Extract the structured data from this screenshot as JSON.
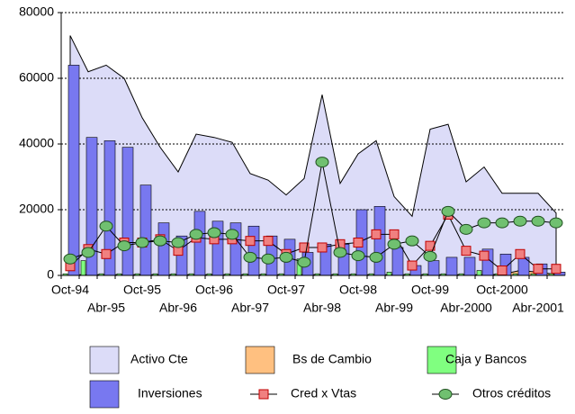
{
  "chart_data": {
    "type": "combo",
    "categories": [
      "Oct-94",
      null,
      "Abr-95",
      null,
      "Oct-95",
      null,
      "Abr-96",
      null,
      "Oct-96",
      null,
      "Abr-97",
      null,
      "Oct-97",
      null,
      "Abr-98",
      null,
      "Oct-98",
      null,
      "Abr-99",
      null,
      "Oct-99",
      null,
      "Abr-2000",
      null,
      "Oct-2000",
      null,
      "Abr-2001",
      null
    ],
    "ylim": [
      0,
      80000
    ],
    "yticks": [
      0,
      20000,
      40000,
      60000,
      80000
    ],
    "grid": true,
    "series": [
      {
        "name": "Activo Cte",
        "kind": "area",
        "color": "#dcdcf8",
        "values": [
          73000,
          62000,
          64000,
          60000,
          48000,
          39000,
          31500,
          43000,
          42000,
          40500,
          31000,
          29000,
          24500,
          29500,
          55000,
          28000,
          37000,
          41000,
          24000,
          18000,
          44500,
          46000,
          28500,
          33000,
          25000,
          25000,
          25000,
          19000
        ]
      },
      {
        "name": "Bs de Cambio",
        "kind": "area",
        "color": "#ffc080",
        "values": [
          200,
          200,
          200,
          200,
          200,
          200,
          200,
          200,
          200,
          200,
          200,
          200,
          200,
          200,
          200,
          200,
          200,
          200,
          200,
          200,
          200,
          200,
          200,
          200,
          300,
          1500,
          1000,
          300
        ]
      },
      {
        "name": "Caja y Bancos",
        "kind": "bar",
        "color": "#80ff80",
        "values": [
          500,
          4500,
          500,
          500,
          500,
          500,
          500,
          500,
          500,
          500,
          500,
          500,
          500,
          5000,
          500,
          500,
          500,
          500,
          1000,
          500,
          500,
          500,
          500,
          1500,
          500,
          500,
          500,
          500
        ]
      },
      {
        "name": "Inversiones",
        "kind": "bar",
        "color": "#7878f0",
        "values": [
          64000,
          42000,
          41000,
          39000,
          27500,
          16000,
          12000,
          19500,
          16500,
          16000,
          15000,
          12000,
          11000,
          7000,
          9500,
          9500,
          20000,
          21000,
          8500,
          3000,
          4500,
          5500,
          5500,
          8000,
          6500,
          5500,
          3500,
          1000
        ]
      },
      {
        "name": "Cred x Vtas",
        "kind": "line",
        "marker": "square",
        "color": "#f08080",
        "values": [
          2800,
          8000,
          6500,
          10000,
          10000,
          11000,
          7500,
          11500,
          11000,
          11000,
          10500,
          10500,
          6500,
          8500,
          8500,
          9500,
          10000,
          12500,
          12500,
          3000,
          9000,
          18500,
          7500,
          6000,
          1500,
          6500,
          2000,
          2000
        ]
      },
      {
        "name": "Otros créditos",
        "kind": "line",
        "marker": "circle",
        "color": "#70c070",
        "values": [
          5000,
          7000,
          15000,
          9000,
          10000,
          10500,
          10000,
          12500,
          13000,
          12500,
          5500,
          5000,
          5500,
          4000,
          34500,
          7000,
          6000,
          5500,
          9500,
          10500,
          5800,
          19500,
          14000,
          16000,
          16000,
          16500,
          16500,
          16000
        ]
      }
    ]
  }
}
